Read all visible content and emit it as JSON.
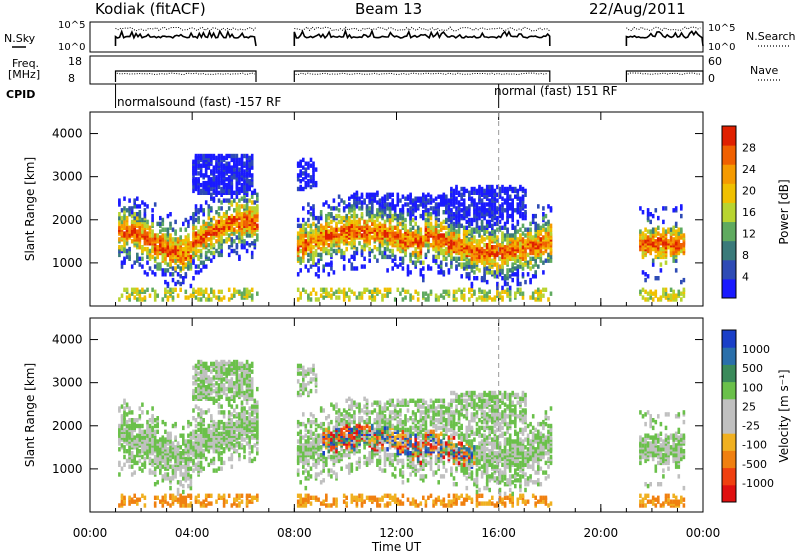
{
  "header": {
    "radar": "Kodiak (fitACF)",
    "beam": "Beam 13",
    "date": "22/Aug/2011"
  },
  "side_labels": {
    "nsky": "N.Sky",
    "freq_line1": "Freq.",
    "freq_line2": "[MHz]",
    "cpid": "CPID",
    "nsearch": "N.Search",
    "nave": "Nave"
  },
  "cpid_labels": [
    "normalsound (fast) -157 RF",
    "normal (fast) 151 RF"
  ],
  "colors": {
    "power_scale": [
      "#1a1aff",
      "#2e4bb5",
      "#3a7a7a",
      "#5faa5f",
      "#b8d430",
      "#f0c000",
      "#f59a00",
      "#f06000",
      "#e02000"
    ],
    "velocity_scale": [
      "#1a3fc8",
      "#2a6faa",
      "#3a8a5a",
      "#6ac04a",
      "#c0c0c0",
      "#c0c0c0",
      "#f0b020",
      "#f08010",
      "#f04010",
      "#e01010"
    ]
  },
  "chart_data": [
    {
      "type": "line",
      "name": "N.Sky / N.Search",
      "xlabel": "",
      "x_range": [
        "00:00",
        "24:00"
      ],
      "yticks_left": [
        "10^5",
        "10^0"
      ],
      "yticks_right": [
        "10^5",
        "10^0"
      ],
      "data_segments": [
        [
          "01:00",
          "06:30"
        ],
        [
          "08:00",
          "18:00"
        ],
        [
          "21:00",
          "24:00"
        ]
      ]
    },
    {
      "type": "line",
      "name": "Freq / Nave",
      "yticks_left": [
        "18",
        "8"
      ],
      "yticks_right": [
        "60",
        "0"
      ],
      "y_left_range": [
        8,
        18
      ],
      "y_right_range": [
        0,
        60
      ]
    },
    {
      "type": "heatmap",
      "name": "Power",
      "ylabel": "Slant Range [km]",
      "yticks": [
        "4000",
        "3000",
        "2000",
        "1000"
      ],
      "ylim": [
        0,
        4500
      ],
      "colorbar_label": "Power [dB]",
      "colorbar_ticks": [
        "28",
        "24",
        "20",
        "16",
        "12",
        "8",
        "4"
      ],
      "colorbar_range": [
        0,
        30
      ]
    },
    {
      "type": "heatmap",
      "name": "Velocity",
      "ylabel": "Slant Range [km]",
      "yticks": [
        "4000",
        "3000",
        "2000",
        "1000"
      ],
      "ylim": [
        0,
        4500
      ],
      "colorbar_label": "Velocity [m s⁻¹]",
      "colorbar_ticks": [
        "1000",
        "500",
        "100",
        "25",
        "-25",
        "-100",
        "-500",
        "-1000"
      ],
      "xlabel": "Time UT",
      "xticks": [
        "00:00",
        "04:00",
        "08:00",
        "12:00",
        "16:00",
        "20:00",
        "00:00"
      ],
      "x_range_hours": [
        0,
        24
      ]
    }
  ]
}
